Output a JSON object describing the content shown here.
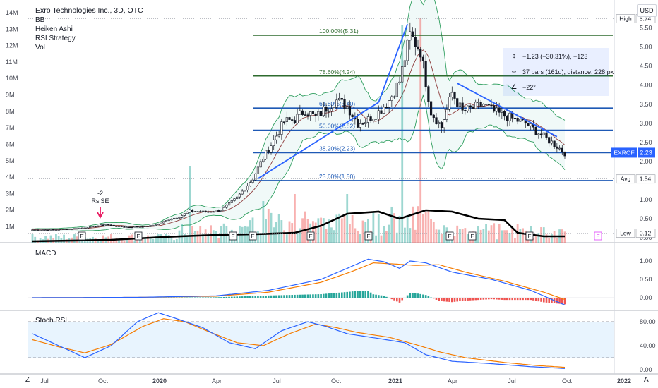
{
  "legend": {
    "title": "Exro Technologies Inc., 3D, OTC",
    "indicators": [
      "BB",
      "Heiken Ashi",
      "RSI Strategy",
      "Vol"
    ]
  },
  "currency": "USD",
  "measure": {
    "change": "−1.23 (−30.31%), −123",
    "bars": "37 bars (161d), distance: 228 px",
    "angle": "−22°"
  },
  "signal": {
    "value": "-2",
    "name": "RsiSE"
  },
  "panes": {
    "macd": "MACD",
    "stoch": "Stoch RSI"
  },
  "corners": {
    "left": "Z",
    "right": "A"
  },
  "colors": {
    "up": "#26a69a",
    "down": "#ef5350",
    "fib": "#1e59b5",
    "fib_top": "#2e6b2e",
    "bb": "#2e9e5e",
    "macd": "#2962ff",
    "signal": "#f57c00"
  },
  "chart_data": [
    {
      "type": "candlestick",
      "symbol": "EXROF",
      "x_labels": [
        "Jul",
        "Oct",
        "2020",
        "Apr",
        "Jul",
        "Oct",
        "2021",
        "Apr",
        "Jul",
        "Oct",
        "2022"
      ],
      "y_ticks": [
        "0.00",
        "0.50",
        "1.00",
        "1.50",
        "2.00",
        "2.50",
        "3.00",
        "3.50",
        "4.00",
        "4.50",
        "5.00",
        "5.50"
      ],
      "ylim": [
        0,
        5.9
      ],
      "volume_ticks": [
        "1M",
        "2M",
        "3M",
        "4M",
        "5M",
        "6M",
        "7M",
        "8M",
        "9M",
        "10M",
        "11M",
        "12M",
        "13M",
        "14M"
      ],
      "close_path": [
        [
          0,
          0.21
        ],
        [
          8,
          0.21
        ],
        [
          16,
          0.24
        ],
        [
          22,
          0.28
        ],
        [
          28,
          0.35
        ],
        [
          32,
          0.3
        ],
        [
          36,
          0.28
        ],
        [
          40,
          0.29
        ],
        [
          44,
          0.3
        ],
        [
          48,
          0.36
        ],
        [
          52,
          0.48
        ],
        [
          56,
          0.55
        ],
        [
          60,
          0.7
        ],
        [
          66,
          0.68
        ],
        [
          72,
          0.72
        ],
        [
          78,
          1.05
        ],
        [
          84,
          1.55
        ],
        [
          88,
          2.1
        ],
        [
          92,
          2.55
        ],
        [
          96,
          3.05
        ],
        [
          100,
          3.1
        ],
        [
          104,
          3.35
        ],
        [
          108,
          3.15
        ],
        [
          112,
          3.4
        ],
        [
          116,
          3.6
        ],
        [
          120,
          3.45
        ],
        [
          124,
          3.0
        ],
        [
          128,
          3.1
        ],
        [
          132,
          3.3
        ],
        [
          136,
          3.6
        ],
        [
          140,
          4.1
        ],
        [
          144,
          5.31
        ],
        [
          148,
          4.9
        ],
        [
          152,
          3.3
        ],
        [
          156,
          2.9
        ],
        [
          160,
          3.8
        ],
        [
          164,
          3.3
        ],
        [
          168,
          3.4
        ],
        [
          172,
          3.5
        ],
        [
          176,
          3.3
        ],
        [
          180,
          3.2
        ],
        [
          184,
          3.1
        ],
        [
          188,
          3.0
        ],
        [
          192,
          2.8
        ],
        [
          196,
          2.6
        ],
        [
          200,
          2.4
        ],
        [
          203,
          2.23
        ]
      ],
      "price_levels": [
        {
          "label": "High",
          "value": 5.74
        },
        {
          "label": "Avg",
          "value": 1.54
        },
        {
          "label": "Low",
          "value": 0.12
        },
        {
          "label": "EXROF",
          "value": 2.23
        }
      ],
      "fibonacci": [
        {
          "label": "100.00%(5.31)",
          "value": 5.31
        },
        {
          "label": "78.60%(4.24)",
          "value": 4.24
        },
        {
          "label": "61.80%(3.40)",
          "value": 3.4
        },
        {
          "label": "50.00%(2.82)",
          "value": 2.82
        },
        {
          "label": "38.20%(2.23)",
          "value": 2.23
        },
        {
          "label": "23.60%(1.50)",
          "value": 1.5
        }
      ],
      "volume_spike_millions": 14
    },
    {
      "type": "line",
      "name": "MACD",
      "y_ticks": [
        "0.00",
        "0.50",
        "1.00"
      ],
      "ylim": [
        -0.35,
        1.2
      ],
      "macd_path": [
        [
          0,
          0
        ],
        [
          40,
          0.01
        ],
        [
          70,
          0.05
        ],
        [
          90,
          0.2
        ],
        [
          110,
          0.5
        ],
        [
          120,
          0.8
        ],
        [
          128,
          1.05
        ],
        [
          134,
          0.98
        ],
        [
          140,
          0.8
        ],
        [
          144,
          1.0
        ],
        [
          150,
          0.95
        ],
        [
          160,
          0.7
        ],
        [
          175,
          0.5
        ],
        [
          190,
          0.2
        ],
        [
          203,
          -0.2
        ]
      ],
      "signal_path": [
        [
          0,
          0
        ],
        [
          40,
          0.01
        ],
        [
          70,
          0.04
        ],
        [
          90,
          0.15
        ],
        [
          110,
          0.42
        ],
        [
          122,
          0.72
        ],
        [
          130,
          0.95
        ],
        [
          138,
          0.92
        ],
        [
          146,
          0.88
        ],
        [
          155,
          0.9
        ],
        [
          165,
          0.7
        ],
        [
          180,
          0.45
        ],
        [
          195,
          0.15
        ],
        [
          203,
          -0.05
        ]
      ]
    },
    {
      "type": "line",
      "name": "Stoch RSI",
      "y_ticks": [
        "0.00",
        "40.00",
        "80.00"
      ],
      "ylim": [
        0,
        100
      ],
      "bands": [
        20,
        80
      ],
      "k_path": [
        [
          0,
          60
        ],
        [
          10,
          40
        ],
        [
          20,
          20
        ],
        [
          30,
          40
        ],
        [
          40,
          80
        ],
        [
          48,
          95
        ],
        [
          55,
          85
        ],
        [
          65,
          70
        ],
        [
          75,
          45
        ],
        [
          85,
          35
        ],
        [
          95,
          65
        ],
        [
          105,
          80
        ],
        [
          112,
          72
        ],
        [
          120,
          60
        ],
        [
          132,
          52
        ],
        [
          142,
          45
        ],
        [
          150,
          25
        ],
        [
          160,
          14
        ],
        [
          175,
          10
        ],
        [
          190,
          5
        ],
        [
          203,
          2
        ]
      ],
      "d_path": [
        [
          0,
          50
        ],
        [
          10,
          38
        ],
        [
          20,
          28
        ],
        [
          30,
          42
        ],
        [
          42,
          72
        ],
        [
          50,
          85
        ],
        [
          58,
          80
        ],
        [
          68,
          62
        ],
        [
          78,
          45
        ],
        [
          88,
          40
        ],
        [
          98,
          60
        ],
        [
          108,
          76
        ],
        [
          116,
          70
        ],
        [
          124,
          62
        ],
        [
          136,
          54
        ],
        [
          146,
          42
        ],
        [
          155,
          30
        ],
        [
          165,
          20
        ],
        [
          180,
          12
        ],
        [
          192,
          7
        ],
        [
          203,
          4
        ]
      ]
    }
  ]
}
